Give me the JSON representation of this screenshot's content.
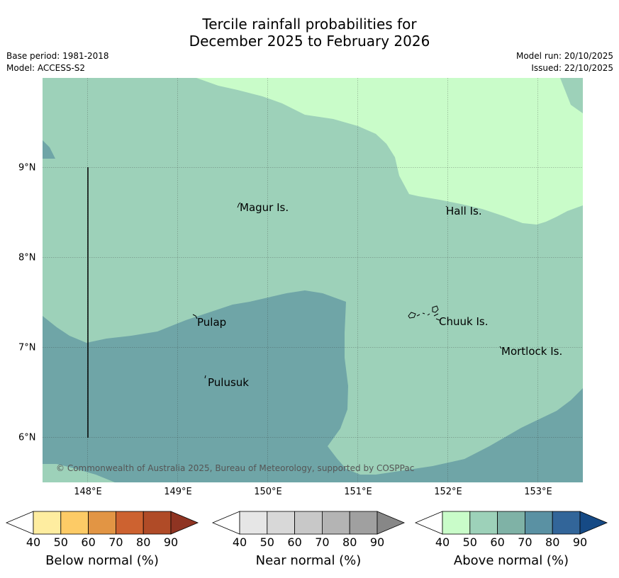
{
  "title": {
    "line1": "Tercile rainfall probabilities for",
    "line2": "December 2025 to February 2026"
  },
  "meta": {
    "base_period": "Base period: 1981-2018",
    "model": "Model: ACCESS-S2",
    "model_run": "Model run: 20/10/2025",
    "issued": "Issued: 22/10/2025"
  },
  "map": {
    "lon_ticks": [
      "148°E",
      "149°E",
      "150°E",
      "151°E",
      "152°E",
      "153°E"
    ],
    "lat_ticks": [
      "9°N",
      "8°N",
      "7°N",
      "6°N"
    ],
    "places": {
      "magur": "Magur Is.",
      "hall": "Hall Is.",
      "pulap": "Pulap",
      "chuuk": "Chuuk Is.",
      "mortlock": "Mortlock Is.",
      "pulusuk": "Pulusuk"
    },
    "copyright": "© Commonwealth of Australia 2025, Bureau of Meteorology, supported by COSPPac",
    "colors": {
      "above_50_60": "#9dd1b9",
      "above_40_50": "#c9fcc9",
      "above_70_80": "#6fa5a7"
    }
  },
  "colorbars": {
    "ticks": [
      "40",
      "50",
      "60",
      "70",
      "80",
      "90"
    ],
    "below": {
      "label": "Below normal (%)",
      "colors": [
        "#ffffff",
        "#feeda0",
        "#fdcb66",
        "#e29544",
        "#cd6230",
        "#b04b27",
        "#8f3422"
      ]
    },
    "near": {
      "label": "Near normal (%)",
      "colors": [
        "#ffffff",
        "#e6e6e6",
        "#d8d8d8",
        "#c8c8c8",
        "#b4b4b4",
        "#a0a0a0",
        "#878787"
      ]
    },
    "above": {
      "label": "Above normal (%)",
      "colors": [
        "#ffffff",
        "#c9fcc9",
        "#9dd1b9",
        "#7fb2a6",
        "#5a91a3",
        "#326599",
        "#164a85"
      ]
    }
  }
}
